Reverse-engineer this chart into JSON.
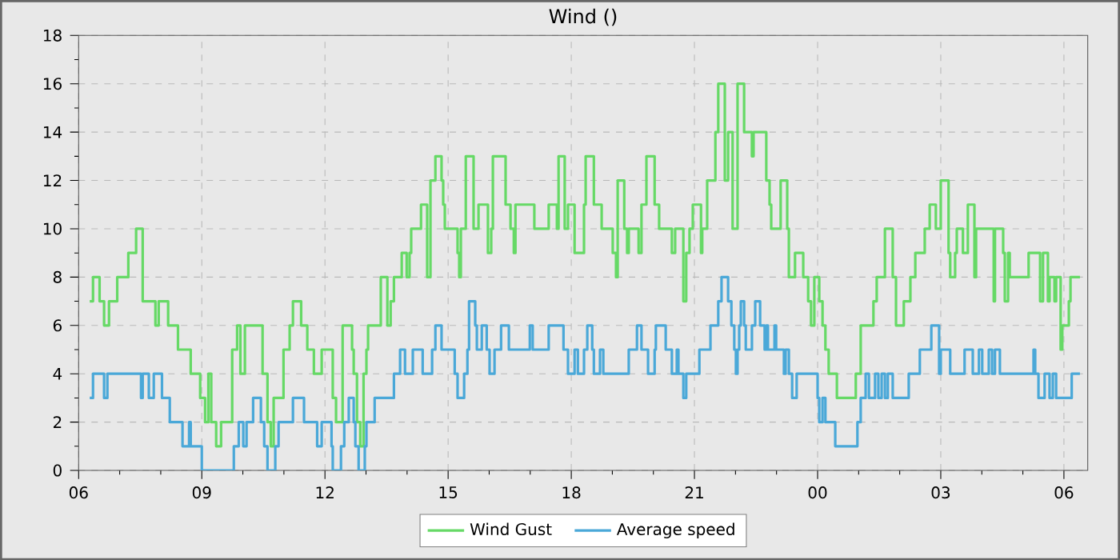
{
  "chart_data": {
    "type": "step",
    "title": "Wind ()",
    "xlim": [
      6,
      30.58
    ],
    "ylim": [
      0,
      18
    ],
    "xticks": [
      {
        "value": 6,
        "label": "06"
      },
      {
        "value": 9,
        "label": "09"
      },
      {
        "value": 12,
        "label": "12"
      },
      {
        "value": 15,
        "label": "15"
      },
      {
        "value": 18,
        "label": "18"
      },
      {
        "value": 21,
        "label": "21"
      },
      {
        "value": 24,
        "label": "00"
      },
      {
        "value": 27,
        "label": "03"
      },
      {
        "value": 30,
        "label": "06"
      }
    ],
    "yticks": [
      0,
      2,
      4,
      6,
      8,
      10,
      12,
      14,
      16,
      18
    ],
    "grid": true,
    "legend": "bottom",
    "series": [
      {
        "name": "Wind Gust",
        "color": "#66d966",
        "x": [
          6.27,
          6.35,
          6.51,
          6.62,
          6.74,
          6.94,
          7.21,
          7.4,
          7.56,
          7.87,
          7.95,
          8.18,
          8.42,
          8.73,
          8.96,
          9.08,
          9.16,
          9.23,
          9.35,
          9.47,
          9.74,
          9.86,
          9.94,
          10.05,
          10.48,
          10.6,
          10.68,
          10.75,
          10.99,
          11.14,
          11.22,
          11.42,
          11.57,
          11.73,
          11.92,
          12.19,
          12.27,
          12.43,
          12.66,
          12.7,
          12.78,
          12.86,
          12.94,
          13.01,
          13.05,
          13.36,
          13.52,
          13.6,
          13.68,
          13.87,
          13.99,
          14.06,
          14.1,
          14.34,
          14.49,
          14.57,
          14.69,
          14.84,
          14.88,
          14.92,
          15.23,
          15.27,
          15.31,
          15.43,
          15.62,
          15.74,
          15.97,
          16.05,
          16.09,
          16.4,
          16.52,
          16.6,
          16.64,
          17.1,
          17.45,
          17.65,
          17.69,
          17.84,
          17.92,
          18.08,
          18.31,
          18.35,
          18.55,
          18.74,
          19.01,
          19.09,
          19.13,
          19.29,
          19.36,
          19.4,
          19.64,
          19.71,
          19.83,
          20.03,
          20.14,
          20.45,
          20.53,
          20.73,
          20.8,
          20.88,
          20.96,
          21.16,
          21.19,
          21.31,
          21.51,
          21.58,
          21.74,
          21.82,
          21.93,
          22.05,
          22.21,
          22.4,
          22.44,
          22.75,
          22.83,
          22.87,
          23.1,
          23.26,
          23.3,
          23.45,
          23.65,
          23.77,
          23.84,
          23.92,
          24.04,
          24.12,
          24.19,
          24.27,
          24.47,
          24.93,
          25.05,
          25.36,
          25.44,
          25.64,
          25.83,
          25.91,
          26.1,
          26.26,
          26.38,
          26.61,
          26.73,
          26.88,
          27.0,
          27.19,
          27.23,
          27.35,
          27.39,
          27.54,
          27.66,
          27.82,
          27.86,
          28.29,
          28.32,
          28.52,
          28.56,
          28.64,
          28.68,
          29.14,
          29.42,
          29.49,
          29.61,
          29.65,
          29.77,
          29.81,
          29.92,
          29.96,
          30.12,
          30.16,
          30.39
        ],
        "values": [
          7,
          8,
          7,
          6,
          7,
          8,
          9,
          10,
          7,
          6,
          7,
          6,
          5,
          4,
          3,
          2,
          4,
          2,
          1,
          2,
          5,
          6,
          4,
          6,
          4,
          2,
          1,
          3,
          5,
          6,
          7,
          6,
          5,
          4,
          5,
          3,
          2,
          6,
          5,
          4,
          2,
          1,
          4,
          5,
          6,
          8,
          6,
          7,
          8,
          9,
          8,
          9,
          10,
          11,
          8,
          12,
          13,
          12,
          11,
          10,
          9,
          8,
          10,
          13,
          10,
          11,
          9,
          10,
          13,
          11,
          10,
          9,
          11,
          10,
          11,
          10,
          13,
          10,
          11,
          9,
          11,
          13,
          11,
          10,
          9,
          8,
          12,
          10,
          9,
          10,
          9,
          11,
          13,
          11,
          10,
          9,
          10,
          7,
          9,
          10,
          11,
          9,
          10,
          12,
          14,
          16,
          12,
          14,
          10,
          16,
          14,
          13,
          14,
          12,
          11,
          10,
          12,
          10,
          8,
          9,
          8,
          7,
          6,
          8,
          7,
          6,
          5,
          4,
          3,
          4,
          6,
          7,
          8,
          10,
          8,
          6,
          7,
          8,
          9,
          10,
          11,
          10,
          12,
          9,
          8,
          9,
          10,
          9,
          11,
          8,
          10,
          7,
          10,
          9,
          7,
          9,
          8,
          9,
          7,
          9,
          7,
          8,
          7,
          8,
          5,
          6,
          7,
          8,
          8
        ]
      },
      {
        "name": "Average speed",
        "color": "#4aa8d8",
        "x": [
          6.27,
          6.35,
          6.62,
          6.7,
          7.52,
          7.56,
          7.71,
          7.83,
          8.03,
          8.22,
          8.53,
          8.69,
          8.73,
          9.0,
          9.78,
          9.9,
          10.01,
          10.09,
          10.25,
          10.44,
          10.52,
          10.6,
          10.79,
          10.87,
          11.22,
          11.49,
          11.81,
          11.92,
          12.16,
          12.19,
          12.39,
          12.47,
          12.58,
          12.7,
          12.74,
          12.82,
          12.97,
          13.01,
          13.21,
          13.68,
          13.83,
          13.95,
          14.14,
          14.38,
          14.61,
          14.69,
          14.84,
          15.16,
          15.23,
          15.39,
          15.47,
          15.51,
          15.66,
          15.7,
          15.82,
          15.94,
          16.01,
          16.13,
          16.29,
          16.48,
          16.99,
          17.06,
          17.45,
          17.81,
          17.92,
          18.08,
          18.16,
          18.31,
          18.39,
          18.51,
          18.55,
          18.7,
          18.78,
          19.4,
          19.6,
          19.71,
          19.87,
          20.03,
          20.06,
          20.3,
          20.45,
          20.57,
          20.61,
          20.73,
          20.8,
          21.12,
          21.39,
          21.58,
          21.66,
          21.82,
          21.9,
          21.97,
          22.01,
          22.05,
          22.09,
          22.13,
          22.21,
          22.25,
          22.4,
          22.48,
          22.6,
          22.71,
          22.75,
          22.79,
          22.95,
          22.99,
          23.18,
          23.22,
          23.3,
          23.38,
          23.49,
          24.0,
          24.04,
          24.12,
          24.19,
          24.43,
          24.97,
          25.05,
          25.17,
          25.25,
          25.4,
          25.48,
          25.56,
          25.64,
          25.71,
          25.83,
          26.22,
          26.49,
          26.77,
          26.96,
          27.0,
          27.23,
          27.58,
          27.78,
          27.93,
          28.01,
          28.17,
          28.25,
          28.32,
          28.44,
          29.26,
          29.3,
          29.38,
          29.53,
          29.65,
          29.73,
          29.81,
          30.19,
          30.39
        ],
        "values": [
          3,
          4,
          3,
          4,
          3,
          4,
          3,
          4,
          3,
          2,
          1,
          2,
          1,
          0,
          1,
          2,
          1,
          2,
          3,
          2,
          1,
          0,
          1,
          2,
          3,
          2,
          1,
          2,
          1,
          0,
          1,
          2,
          3,
          2,
          1,
          0,
          1,
          2,
          3,
          4,
          5,
          4,
          5,
          4,
          5,
          6,
          5,
          4,
          3,
          4,
          5,
          7,
          6,
          5,
          6,
          5,
          4,
          5,
          6,
          5,
          6,
          5,
          6,
          5,
          4,
          5,
          4,
          5,
          6,
          5,
          4,
          5,
          4,
          5,
          6,
          5,
          4,
          5,
          6,
          5,
          4,
          5,
          4,
          3,
          4,
          5,
          6,
          7,
          8,
          7,
          6,
          5,
          4,
          5,
          6,
          7,
          6,
          5,
          6,
          7,
          6,
          5,
          6,
          5,
          6,
          5,
          4,
          5,
          4,
          3,
          4,
          3,
          2,
          3,
          2,
          1,
          2,
          3,
          4,
          3,
          4,
          3,
          4,
          3,
          4,
          3,
          4,
          5,
          6,
          4,
          5,
          4,
          5,
          4,
          5,
          4,
          5,
          4,
          5,
          4,
          5,
          4,
          3,
          4,
          3,
          4,
          3,
          4,
          4
        ]
      }
    ]
  }
}
